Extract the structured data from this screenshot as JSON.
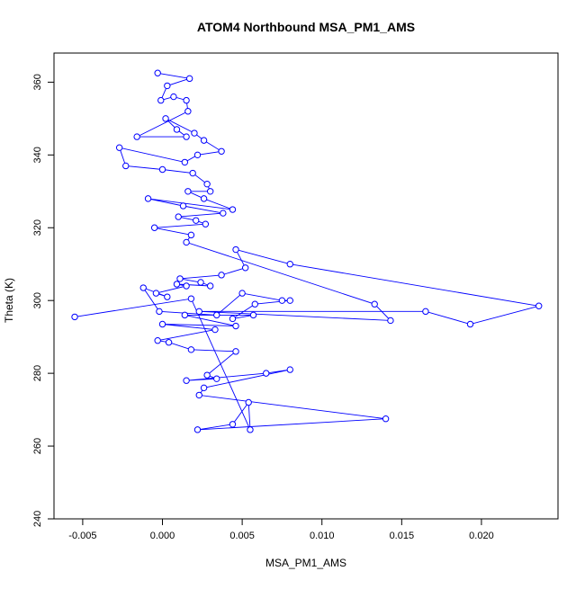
{
  "chart_data": {
    "type": "line",
    "title": "ATOM4 Northbound MSA_PM1_AMS",
    "xlabel": "MSA_PM1_AMS",
    "ylabel": "Theta (K)",
    "xlim": [
      -0.0068,
      0.0248
    ],
    "ylim": [
      240,
      368
    ],
    "xticks": [
      -0.005,
      0.0,
      0.005,
      0.01,
      0.015,
      0.02
    ],
    "xtick_labels": [
      "-0.005",
      "0.000",
      "0.005",
      "0.010",
      "0.015",
      "0.020"
    ],
    "yticks": [
      240,
      260,
      280,
      300,
      320,
      340,
      360
    ],
    "ytick_labels": [
      "240",
      "260",
      "280",
      "300",
      "320",
      "340",
      "360"
    ],
    "grid": false,
    "legend": "none",
    "marker": "open-circle",
    "color": "#0000ff",
    "series": [
      {
        "x": [
          -0.0003,
          0.0017,
          0.0003,
          -0.0001,
          0.0007,
          0.0015,
          0.0016,
          -0.0016,
          0.0015,
          0.0009,
          0.0002,
          0.002,
          0.0026,
          0.0037,
          0.0022,
          0.0014,
          -0.0027,
          -0.0023,
          0.0,
          0.0019,
          0.0028,
          0.003,
          0.0016,
          0.0026,
          0.0044,
          -0.0009,
          0.0013,
          0.0038,
          0.001,
          0.0021,
          0.0027,
          -0.0005,
          0.0018,
          0.0015,
          0.0133,
          0.0143,
          0.0023,
          0.0165,
          0.0193,
          0.0236,
          0.008,
          0.0046,
          0.0052,
          0.0037,
          0.0011,
          0.0024,
          0.003,
          0.0009,
          0.0015,
          -0.0004,
          0.0003,
          -0.0012,
          -0.0002,
          0.0034,
          0.005,
          0.0075,
          0.008,
          0.0058,
          0.0044,
          0.0057,
          0.0014,
          0.0046,
          0.0,
          0.0033,
          -0.0003,
          0.0004,
          0.0018,
          0.0046,
          0.0028,
          0.0034,
          0.0015,
          0.0065,
          0.008,
          0.0026,
          0.0023,
          0.014,
          0.0022,
          0.0044,
          0.0054,
          0.0055,
          0.0018,
          -0.0055
        ],
        "y": [
          362.5,
          361.0,
          359.0,
          355.0,
          356.0,
          355.0,
          352.0,
          345.0,
          345.0,
          347.0,
          350.0,
          346.0,
          344.0,
          341.0,
          340.0,
          338.0,
          342.0,
          337.0,
          336.0,
          335.0,
          332.0,
          330.0,
          330.0,
          328.0,
          325.0,
          328.0,
          326.0,
          324.0,
          323.0,
          322.0,
          321.0,
          320.0,
          318.0,
          316.0,
          299.0,
          294.5,
          297.0,
          297.0,
          293.5,
          298.5,
          310.0,
          314.0,
          309.0,
          307.0,
          306.0,
          305.0,
          304.0,
          304.5,
          304.0,
          302.0,
          301.0,
          303.5,
          297.0,
          296.0,
          302.0,
          300.0,
          300.0,
          299.0,
          295.0,
          296.0,
          296.0,
          293.0,
          293.5,
          292.0,
          289.0,
          288.5,
          286.5,
          286.0,
          279.5,
          278.5,
          278.0,
          280.0,
          281.0,
          276.0,
          274.0,
          267.5,
          264.5,
          266.0,
          272.0,
          264.5,
          300.5,
          295.5
        ]
      }
    ]
  }
}
